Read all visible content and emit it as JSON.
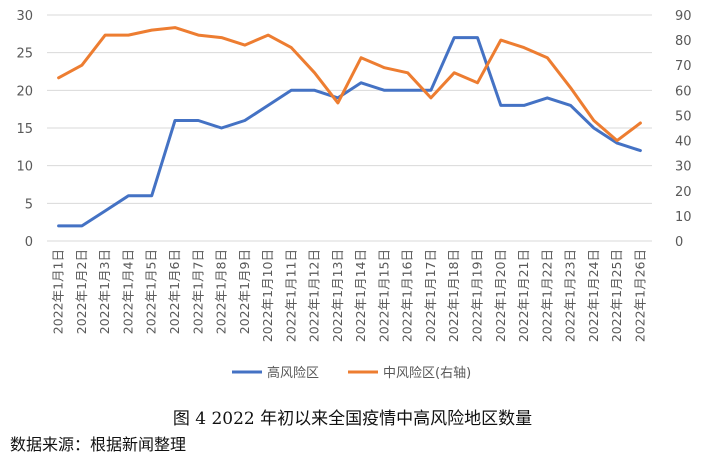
{
  "chart_data": {
    "type": "line",
    "categories": [
      "2022年1月1日",
      "2022年1月2日",
      "2022年1月3日",
      "2022年1月4日",
      "2022年1月5日",
      "2022年1月6日",
      "2022年1月7日",
      "2022年1月8日",
      "2022年1月9日",
      "2022年1月10日",
      "2022年1月11日",
      "2022年1月12日",
      "2022年1月13日",
      "2022年1月14日",
      "2022年1月15日",
      "2022年1月16日",
      "2022年1月17日",
      "2022年1月18日",
      "2022年1月19日",
      "2022年1月20日",
      "2022年1月21日",
      "2022年1月22日",
      "2022年1月23日",
      "2022年1月24日",
      "2022年1月25日",
      "2022年1月26日"
    ],
    "series": [
      {
        "name": "高风险区",
        "axis": "left",
        "color": "#4472C4",
        "values": [
          2,
          2,
          4,
          6,
          6,
          16,
          16,
          15,
          16,
          18,
          20,
          20,
          19,
          21,
          20,
          20,
          20,
          27,
          27,
          18,
          18,
          19,
          18,
          15,
          13,
          12
        ]
      },
      {
        "name": "中风险区(右轴)",
        "axis": "right",
        "color": "#ED7D31",
        "values": [
          65,
          70,
          82,
          82,
          84,
          85,
          82,
          81,
          78,
          82,
          77,
          67,
          55,
          73,
          69,
          67,
          57,
          67,
          63,
          80,
          77,
          73,
          61,
          48,
          40,
          47
        ]
      }
    ],
    "y_left": {
      "min": 0,
      "max": 30,
      "ticks": [
        0,
        5,
        10,
        15,
        20,
        25,
        30
      ]
    },
    "y_right": {
      "min": 0,
      "max": 90,
      "ticks": [
        0,
        10,
        20,
        30,
        40,
        50,
        60,
        70,
        80,
        90
      ]
    },
    "grid": true,
    "legend_position": "bottom"
  },
  "caption": "图 4 2022 年初以来全国疫情中高风险地区数量",
  "source": "数据来源：根据新闻整理"
}
